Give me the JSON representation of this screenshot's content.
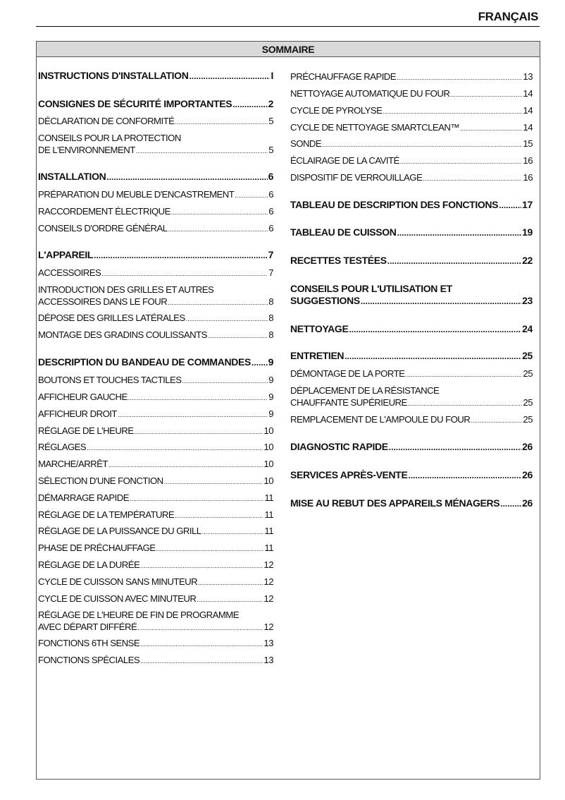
{
  "header": {
    "language": "FRANÇAIS"
  },
  "toc": {
    "title": "SOMMAIRE",
    "left": [
      {
        "lines": [
          "INSTRUCTIONS D'INSTALLATION"
        ],
        "page": "I",
        "bold": true
      },
      {
        "lines": [
          "CONSIGNES DE SÉCURITÉ IMPORTANTES"
        ],
        "page": "2",
        "bold": true
      },
      {
        "lines": [
          "DÉCLARATION DE CONFORMITÉ"
        ],
        "page": "5"
      },
      {
        "lines": [
          "CONSEILS POUR LA PROTECTION",
          "DE L'ENVIRONNEMENT"
        ],
        "page": "5"
      },
      {
        "lines": [
          "INSTALLATION"
        ],
        "page": "6",
        "bold": true
      },
      {
        "lines": [
          "PRÉPARATION DU MEUBLE D'ENCASTREMENT"
        ],
        "page": "6"
      },
      {
        "lines": [
          "RACCORDEMENT ÉLECTRIQUE"
        ],
        "page": "6"
      },
      {
        "lines": [
          "CONSEILS D'ORDRE GÉNÉRAL"
        ],
        "page": "6"
      },
      {
        "lines": [
          "L'APPAREIL"
        ],
        "page": "7",
        "bold": true
      },
      {
        "lines": [
          "ACCESSOIRES"
        ],
        "page": "7"
      },
      {
        "lines": [
          "INTRODUCTION DES GRILLES ET AUTRES",
          "ACCESSOIRES DANS LE FOUR"
        ],
        "page": "8"
      },
      {
        "lines": [
          "DÉPOSE DES GRILLES LATÉRALES"
        ],
        "page": "8"
      },
      {
        "lines": [
          "MONTAGE DES GRADINS COULISSANTS"
        ],
        "page": "8"
      },
      {
        "lines": [
          "DESCRIPTION DU BANDEAU DE COMMANDES"
        ],
        "page": "9",
        "bold": true
      },
      {
        "lines": [
          "BOUTONS ET TOUCHES TACTILES"
        ],
        "page": "9"
      },
      {
        "lines": [
          "AFFICHEUR GAUCHE"
        ],
        "page": "9"
      },
      {
        "lines": [
          "AFFICHEUR DROIT"
        ],
        "page": "9"
      },
      {
        "lines": [
          "RÉGLAGE DE L'HEURE"
        ],
        "page": "10"
      },
      {
        "lines": [
          "RÉGLAGES"
        ],
        "page": "10"
      },
      {
        "lines": [
          "MARCHE/ARRÊT"
        ],
        "page": "10"
      },
      {
        "lines": [
          "SÉLECTION D'UNE FONCTION"
        ],
        "page": "10"
      },
      {
        "lines": [
          "DÉMARRAGE RAPIDE"
        ],
        "page": "11"
      },
      {
        "lines": [
          "RÉGLAGE DE LA TEMPÉRATURE"
        ],
        "page": "11"
      },
      {
        "lines": [
          "RÉGLAGE DE LA PUISSANCE DU GRILL"
        ],
        "page": "11"
      },
      {
        "lines": [
          "PHASE DE PRÉCHAUFFAGE"
        ],
        "page": "11"
      },
      {
        "lines": [
          "RÉGLAGE DE LA DURÉE"
        ],
        "page": "12"
      },
      {
        "lines": [
          "CYCLE DE CUISSON SANS MINUTEUR"
        ],
        "page": "12"
      },
      {
        "lines": [
          "CYCLE DE CUISSON AVEC MINUTEUR"
        ],
        "page": "12"
      },
      {
        "lines": [
          "RÉGLAGE DE L'HEURE DE FIN DE PROGRAMME",
          "AVEC DÉPART DIFFÉRÉ"
        ],
        "page": "12"
      },
      {
        "lines": [
          "FONCTIONS 6TH SENSE"
        ],
        "page": "13"
      },
      {
        "lines": [
          "FONCTIONS SPÉCIALES"
        ],
        "page": "13"
      }
    ],
    "right": [
      {
        "lines": [
          "PRÉCHAUFFAGE RAPIDE"
        ],
        "page": "13"
      },
      {
        "lines": [
          "NETTOYAGE AUTOMATIQUE DU FOUR"
        ],
        "page": "14"
      },
      {
        "lines": [
          "CYCLE DE PYROLYSE"
        ],
        "page": "14"
      },
      {
        "lines": [
          "CYCLE DE NETTOYAGE SMARTCLEAN™"
        ],
        "page": "14"
      },
      {
        "lines": [
          "SONDE"
        ],
        "page": "15"
      },
      {
        "lines": [
          "ÉCLAIRAGE DE LA CAVITÉ"
        ],
        "page": "16"
      },
      {
        "lines": [
          "DISPOSITIF DE VERROUILLAGE"
        ],
        "page": "16"
      },
      {
        "lines": [
          "TABLEAU DE DESCRIPTION DES FONCTIONS"
        ],
        "page": "17",
        "bold": true
      },
      {
        "lines": [
          "TABLEAU DE CUISSON"
        ],
        "page": "19",
        "bold": true
      },
      {
        "lines": [
          "RECETTES TESTÉES"
        ],
        "page": "22",
        "bold": true
      },
      {
        "lines": [
          "CONSEILS POUR L'UTILISATION ET",
          "SUGGESTIONS"
        ],
        "page": "23",
        "bold": true
      },
      {
        "lines": [
          "NETTOYAGE"
        ],
        "page": "24",
        "bold": true
      },
      {
        "lines": [
          "ENTRETIEN"
        ],
        "page": "25",
        "bold": true
      },
      {
        "lines": [
          "DÉMONTAGE DE LA PORTE"
        ],
        "page": "25"
      },
      {
        "lines": [
          "DÉPLACEMENT DE LA RÉSISTANCE",
          "CHAUFFANTE SUPÉRIEURE"
        ],
        "page": "25"
      },
      {
        "lines": [
          "REMPLACEMENT DE L'AMPOULE DU FOUR"
        ],
        "page": "25"
      },
      {
        "lines": [
          "DIAGNOSTIC RAPIDE"
        ],
        "page": "26",
        "bold": true
      },
      {
        "lines": [
          "SERVICES APRÈS-VENTE"
        ],
        "page": "26",
        "bold": true
      },
      {
        "lines": [
          "MISE AU REBUT DES APPAREILS MÉNAGERS"
        ],
        "page": "26",
        "bold": true
      }
    ]
  }
}
